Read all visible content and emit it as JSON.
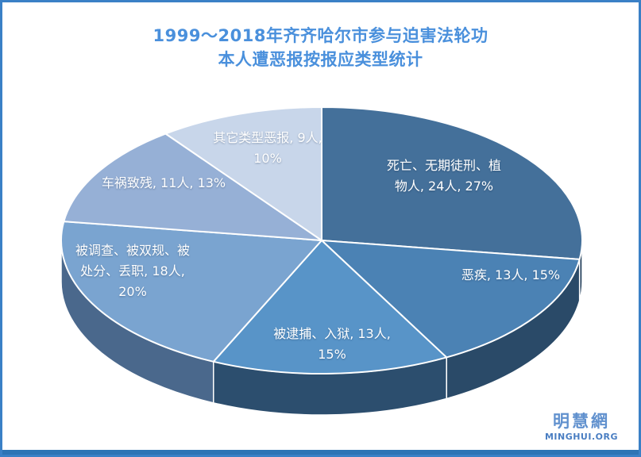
{
  "title": {
    "line1": "1999～2018年齐齐哈尔市参与迫害法轮功",
    "line2": "本人遭恶报按报应类型统计",
    "color": "#4a90dc"
  },
  "logo": {
    "chinese": "明慧網",
    "english": "MINGHUI.ORG",
    "color": "#6191ce"
  },
  "frame": {
    "border_color": "#3a80c6",
    "bottom_bar_color": "#2e74b5",
    "background": "#ffffff"
  },
  "chart_data": {
    "type": "pie",
    "projection": "3d",
    "title": "1999～2018年齐齐哈尔市参与迫害法轮功 本人遭恶报按报应类型统计",
    "unit": "人",
    "total_count": 88,
    "start_angle_deg": 0,
    "direction": "clockwise",
    "legend": "none",
    "label_color": "#ffffff",
    "slices": [
      {
        "category": "死亡、无期徒刑、植物人",
        "count": 24,
        "percent": 27,
        "color": "#44709a",
        "side_color": "#25405c",
        "label_lines": [
          "死亡、无期徒刑、植",
          "物人, 24人, 27%"
        ],
        "label_pos": [
          556,
          219
        ]
      },
      {
        "category": "恶疾",
        "count": 13,
        "percent": 15,
        "color": "#4b82b4",
        "side_color": "#2a4a68",
        "label_lines": [
          "恶疾, 13人, 15%"
        ],
        "label_pos": [
          640,
          344
        ]
      },
      {
        "category": "被逮捕、入狱",
        "count": 13,
        "percent": 15,
        "color": "#5894c8",
        "side_color": "#2c4e6e",
        "label_lines": [
          "被逮捕、入狱, 13人,",
          "15%"
        ],
        "label_pos": [
          415,
          431
        ]
      },
      {
        "category": "被调查、被双规、被处分、丢职",
        "count": 18,
        "percent": 20,
        "color": "#7aa4d0",
        "side_color": "#4a688c",
        "label_lines": [
          "被调查、被双规、被",
          "处分、丢职, 18人,",
          "20%"
        ],
        "label_pos": [
          164,
          339
        ]
      },
      {
        "category": "车祸致残",
        "count": 11,
        "percent": 13,
        "color": "#96b0d6",
        "side_color": "#56708f",
        "label_lines": [
          "车祸致残, 11人, 13%"
        ],
        "label_pos": [
          203,
          228
        ]
      },
      {
        "category": "其它类型恶报",
        "count": 9,
        "percent": 10,
        "color": "#c8d6ea",
        "side_color": "#7e8fa6",
        "label_lines": [
          "其它类型恶报, 9人,",
          "10%"
        ],
        "label_pos": [
          334,
          184
        ]
      }
    ]
  }
}
